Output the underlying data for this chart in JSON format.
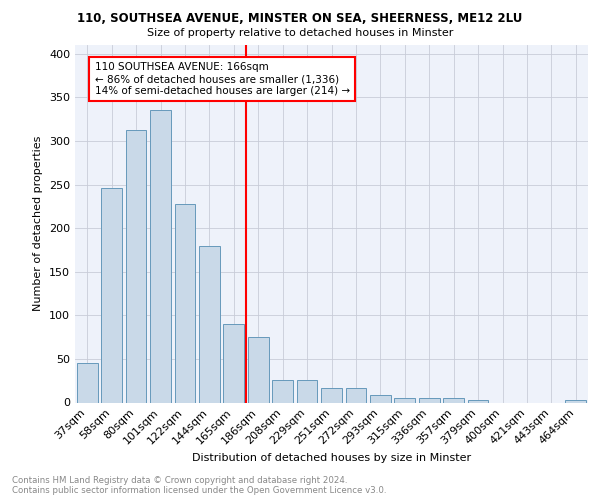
{
  "title_line1": "110, SOUTHSEA AVENUE, MINSTER ON SEA, SHEERNESS, ME12 2LU",
  "title_line2": "Size of property relative to detached houses in Minster",
  "xlabel": "Distribution of detached houses by size in Minster",
  "ylabel": "Number of detached properties",
  "categories": [
    "37sqm",
    "58sqm",
    "80sqm",
    "101sqm",
    "122sqm",
    "144sqm",
    "165sqm",
    "186sqm",
    "208sqm",
    "229sqm",
    "251sqm",
    "272sqm",
    "293sqm",
    "315sqm",
    "336sqm",
    "357sqm",
    "379sqm",
    "400sqm",
    "421sqm",
    "443sqm",
    "464sqm"
  ],
  "values": [
    45,
    246,
    312,
    335,
    228,
    180,
    90,
    75,
    26,
    26,
    17,
    17,
    9,
    5,
    5,
    5,
    3,
    0,
    0,
    0,
    3
  ],
  "bar_color": "#c9d9e8",
  "bar_edge_color": "#6699bb",
  "vline_x_index": 6,
  "vline_color": "red",
  "annotation_text": "110 SOUTHSEA AVENUE: 166sqm\n← 86% of detached houses are smaller (1,336)\n14% of semi-detached houses are larger (214) →",
  "footer_line1": "Contains HM Land Registry data © Crown copyright and database right 2024.",
  "footer_line2": "Contains public sector information licensed under the Open Government Licence v3.0.",
  "ylim": [
    0,
    410
  ],
  "bg_color": "#eef2fa",
  "grid_color": "#c8ccd8"
}
